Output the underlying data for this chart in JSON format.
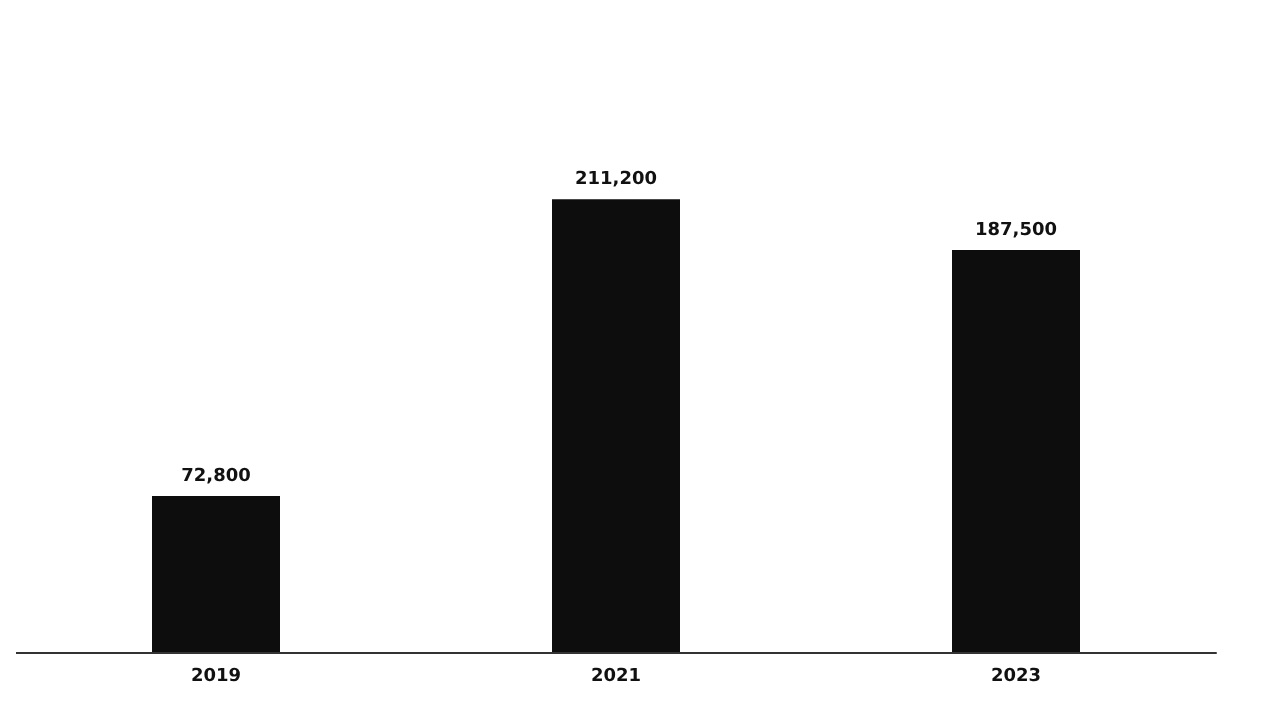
{
  "chart_data": {
    "type": "bar",
    "categories": [
      "2019",
      "2021",
      "2023"
    ],
    "values": [
      72800,
      211200,
      187500
    ],
    "value_labels": [
      "72,800",
      "211,200",
      "187,500"
    ],
    "color": "#0d0d0d"
  }
}
